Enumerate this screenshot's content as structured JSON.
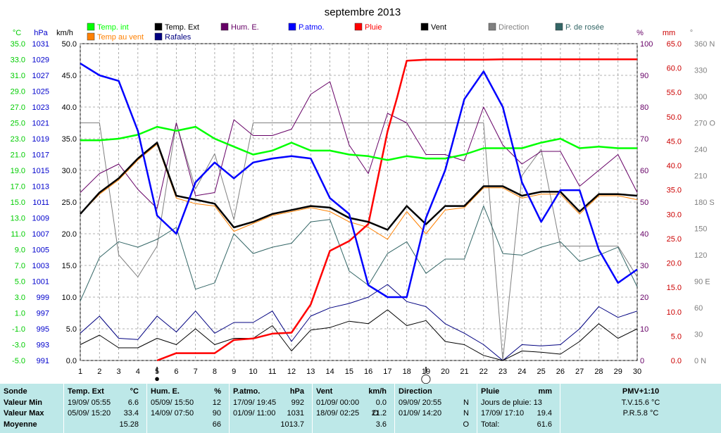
{
  "chart_data": {
    "type": "line",
    "title": "septembre 2013",
    "x": [
      1,
      2,
      3,
      4,
      5,
      6,
      7,
      8,
      9,
      10,
      11,
      12,
      13,
      14,
      15,
      16,
      17,
      18,
      19,
      20,
      21,
      22,
      23,
      24,
      25,
      26,
      27,
      28,
      29,
      30
    ],
    "x_ticks": [
      "1",
      "2",
      "3",
      "4",
      "5",
      "6",
      "7",
      "8",
      "9",
      "10",
      "11",
      "12",
      "13",
      "14",
      "15",
      "16",
      "17",
      "18",
      "19",
      "20",
      "21",
      "22",
      "23",
      "24",
      "25",
      "26",
      "27",
      "28",
      "29",
      "30"
    ],
    "grid": true,
    "axes": {
      "temp_c": {
        "unit": "°C",
        "color": "#00cc00",
        "range": [
          -5,
          35
        ],
        "ticks": [
          "-5.0",
          "-3.0",
          "-1.0",
          "1.0",
          "3.0",
          "5.0",
          "7.0",
          "9.0",
          "11.0",
          "13.0",
          "15.0",
          "17.0",
          "19.0",
          "21.0",
          "23.0",
          "25.0",
          "27.0",
          "29.0",
          "31.0",
          "33.0",
          "35.0"
        ]
      },
      "pressure_hpa": {
        "unit": "hPa",
        "color": "#0000cc",
        "range": [
          991,
          1031
        ],
        "ticks": [
          "991",
          "993",
          "995",
          "997",
          "999",
          "1001",
          "1003",
          "1005",
          "1007",
          "1009",
          "1011",
          "1013",
          "1015",
          "1017",
          "1019",
          "1021",
          "1023",
          "1025",
          "1027",
          "1029",
          "1031"
        ]
      },
      "wind_kmh": {
        "unit": "km/h",
        "color": "#000000",
        "range": [
          0,
          50
        ],
        "ticks": [
          "0.0",
          "5.0",
          "10.0",
          "15.0",
          "20.0",
          "25.0",
          "30.0",
          "35.0",
          "40.0",
          "45.0",
          "50.0"
        ]
      },
      "humidity_pct": {
        "unit": "%",
        "color": "#660066",
        "range": [
          0,
          100
        ],
        "ticks": [
          "0",
          "10",
          "20",
          "30",
          "40",
          "50",
          "60",
          "70",
          "80",
          "90",
          "100"
        ]
      },
      "rain_mm": {
        "unit": "mm",
        "color": "#cc0000",
        "range": [
          0,
          65
        ],
        "ticks": [
          "0.0",
          "5.0",
          "10.0",
          "15.0",
          "20.0",
          "25.0",
          "30.0",
          "35.0",
          "40.0",
          "45.0",
          "50.0",
          "55.0",
          "60.0",
          "65.0"
        ]
      },
      "direction_deg": {
        "unit": "°",
        "color": "#808080",
        "range": [
          0,
          360
        ],
        "ticks": [
          "0 N",
          "30",
          "60",
          "90 E",
          "120",
          "150",
          "180 S",
          "210",
          "240",
          "270 O",
          "300",
          "330",
          "360 N"
        ]
      }
    },
    "legend": [
      {
        "label": "Temp. int",
        "color": "#00ff00"
      },
      {
        "label": "Temp. Ext",
        "color": "#000000"
      },
      {
        "label": "Hum. E.",
        "color": "#660066"
      },
      {
        "label": "P.atmo.",
        "color": "#0000ff"
      },
      {
        "label": "Pluie",
        "color": "#ff0000"
      },
      {
        "label": "Vent",
        "color": "#000000"
      },
      {
        "label": "Direction",
        "color": "#808080"
      },
      {
        "label": "P. de rosée",
        "color": "#336666"
      },
      {
        "label": "Temp au vent",
        "color": "#ff8000"
      },
      {
        "label": "Rafales",
        "color": "#000080"
      }
    ],
    "series": [
      {
        "name": "Temp. int",
        "axis": "temp_c",
        "color": "#00ff00",
        "width": 2.5,
        "values": [
          22.8,
          22.8,
          23.0,
          23.5,
          24.5,
          24.0,
          24.5,
          23.0,
          22.0,
          21.0,
          21.5,
          22.5,
          21.5,
          21.5,
          21.0,
          20.8,
          20.3,
          20.8,
          20.5,
          20.5,
          21.0,
          21.8,
          21.8,
          21.8,
          22.5,
          23.0,
          21.8,
          22.0,
          21.8,
          21.8
        ]
      },
      {
        "name": "Temp. Ext",
        "axis": "temp_c",
        "color": "#000000",
        "width": 2.5,
        "values": [
          13.5,
          16.2,
          18.0,
          20.5,
          22.5,
          15.8,
          15.3,
          14.8,
          11.8,
          12.5,
          13.5,
          14.0,
          14.5,
          14.3,
          13.0,
          12.5,
          11.5,
          14.5,
          12.2,
          14.5,
          14.5,
          17.0,
          17.0,
          15.8,
          16.3,
          16.3,
          13.8,
          16.0,
          16.0,
          15.8
        ]
      },
      {
        "name": "Temp au vent",
        "axis": "temp_c",
        "color": "#ff8000",
        "width": 1,
        "values": [
          13.5,
          16.0,
          17.8,
          20.3,
          22.3,
          15.5,
          14.8,
          14.5,
          11.3,
          12.3,
          13.3,
          13.8,
          14.3,
          13.8,
          12.5,
          11.8,
          10.3,
          13.8,
          11.0,
          14.0,
          14.3,
          16.8,
          16.8,
          15.5,
          16.0,
          16.0,
          13.5,
          15.8,
          15.8,
          15.3
        ]
      },
      {
        "name": "P. de rosée",
        "axis": "temp_c",
        "color": "#336666",
        "width": 1,
        "values": [
          2.5,
          8.0,
          10.0,
          9.3,
          10.3,
          11.8,
          4.0,
          4.8,
          11.0,
          8.5,
          9.3,
          9.8,
          12.5,
          12.8,
          6.3,
          4.5,
          8.5,
          10.0,
          6.0,
          7.8,
          7.8,
          14.5,
          8.5,
          8.3,
          9.3,
          10.0,
          7.5,
          8.3,
          9.3,
          4.3
        ]
      },
      {
        "name": "Hum. E.",
        "axis": "humidity_pct",
        "color": "#660066",
        "width": 1,
        "values": [
          53,
          59,
          62,
          54,
          48,
          75,
          52,
          53,
          76,
          71,
          71,
          73,
          84,
          88,
          68,
          59,
          78,
          75,
          65,
          65,
          63,
          80,
          68,
          62,
          66,
          66,
          55,
          60,
          65,
          53
        ]
      },
      {
        "name": "P.atmo.",
        "axis": "pressure_hpa",
        "color": "#0000ff",
        "width": 2.5,
        "values": [
          1028.5,
          1027.0,
          1026.3,
          1020.0,
          1009.3,
          1007.0,
          1013.5,
          1016.0,
          1014.0,
          1016.0,
          1016.5,
          1016.8,
          1016.5,
          1011.5,
          1009.5,
          1000.5,
          999.0,
          999.0,
          1009.0,
          1015.0,
          1024.0,
          1027.5,
          1023.0,
          1013.5,
          1008.5,
          1012.5,
          1012.5,
          1005.0,
          1000.8,
          1002.5
        ]
      },
      {
        "name": "Vent",
        "axis": "wind_kmh",
        "color": "#000000",
        "width": 1,
        "values": [
          2.5,
          4.0,
          2.0,
          2.0,
          3.5,
          2.5,
          5.0,
          2.5,
          3.5,
          3.5,
          5.5,
          1.5,
          4.8,
          5.2,
          6.2,
          5.8,
          8.0,
          5.5,
          6.3,
          3.0,
          2.5,
          0.8,
          0.0,
          1.5,
          1.3,
          1.0,
          3.0,
          5.8,
          3.5,
          5.0
        ]
      },
      {
        "name": "Rafales",
        "axis": "wind_kmh",
        "color": "#000080",
        "width": 1,
        "values": [
          4.3,
          7.0,
          3.5,
          3.3,
          7.0,
          4.5,
          7.8,
          4.3,
          6.0,
          6.0,
          7.8,
          3.0,
          7.0,
          8.3,
          9.0,
          10.0,
          12.0,
          9.3,
          8.5,
          5.8,
          4.3,
          2.5,
          0.0,
          2.5,
          2.3,
          2.5,
          5.0,
          8.5,
          6.8,
          7.8
        ]
      },
      {
        "name": "Direction",
        "axis": "direction_deg",
        "color": "#808080",
        "width": 1,
        "values": [
          270,
          270,
          120,
          95,
          130,
          270,
          195,
          235,
          160,
          270,
          270,
          270,
          270,
          270,
          270,
          270,
          270,
          270,
          270,
          270,
          270,
          270,
          0,
          210,
          240,
          130,
          130,
          130,
          130,
          95
        ]
      },
      {
        "name": "Pluie",
        "axis": "rain_mm",
        "color": "#ff0000",
        "width": 2.5,
        "points": [
          [
            5,
            0
          ],
          [
            6,
            1.5
          ],
          [
            7,
            1.5
          ],
          [
            8,
            1.5
          ],
          [
            9,
            4.2
          ],
          [
            10,
            4.5
          ],
          [
            11,
            5.5
          ],
          [
            12,
            5.7
          ],
          [
            13,
            11.5
          ],
          [
            14,
            22.5
          ],
          [
            15,
            24.5
          ],
          [
            16,
            28
          ],
          [
            17,
            47
          ],
          [
            17.5,
            54
          ],
          [
            18,
            61.5
          ],
          [
            19,
            61.7
          ],
          [
            20,
            61.7
          ],
          [
            21,
            61.7
          ],
          [
            22,
            61.7
          ],
          [
            23,
            61.8
          ],
          [
            24,
            61.8
          ],
          [
            25,
            61.8
          ],
          [
            26,
            61.8
          ],
          [
            27,
            61.8
          ],
          [
            28,
            61.8
          ],
          [
            29,
            61.8
          ],
          [
            30,
            61.8
          ]
        ]
      }
    ],
    "moon_markers": [
      {
        "day": 5,
        "label": "●"
      },
      {
        "day": 19,
        "label": "◯"
      }
    ]
  },
  "footer": {
    "labels": {
      "l1": "Sonde",
      "l2": "Valeur Min",
      "l3": "Valeur Max",
      "l4": "Moyenne"
    },
    "temp": {
      "h1": "Temp. Ext",
      "h2": "°C",
      "min_date": "19/09/  05:55",
      "min": "6.6",
      "max_date": "05/09/  15:20",
      "max": "33.4",
      "avg": "15.28"
    },
    "hum": {
      "h1": "Hum. E.",
      "h2": "%",
      "min_date": "05/09/  15:50",
      "min": "12",
      "max_date": "14/09/  07:50",
      "max": "90",
      "avg": "66"
    },
    "press": {
      "h1": "P.atmo.",
      "h2": "hPa",
      "min_date": "17/09/  19:45",
      "min": "992",
      "max_date": "01/09/  11:00",
      "max": "1031",
      "avg": "1013.7"
    },
    "wind": {
      "h1": "Vent",
      "h2": "km/h",
      "min_date": "01/09/  00:00",
      "min": "0.0",
      "max_date": "18/09/  02:25",
      "max_dir": "O",
      "max": "21.2",
      "avg": "3.6"
    },
    "dir": {
      "h1": "Direction",
      "min_date": "09/09/  20:55",
      "min": "N",
      "max_date": "01/09/  14:20",
      "max": "N",
      "avg": "O"
    },
    "rain": {
      "h1": "Pluie",
      "h2": "mm",
      "days": "Jours de pluie: 13",
      "max_date": "17/09/  17:10",
      "max": "19.4",
      "total_label": "Total:",
      "total": "61.6"
    },
    "pmv": {
      "h1": "PMV+1:10",
      "tv": "T.V.15.6 °C",
      "pr": "P.R.5.8 °C"
    }
  }
}
